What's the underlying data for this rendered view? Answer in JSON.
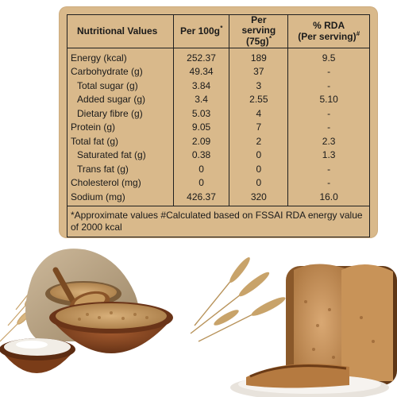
{
  "nutrition": {
    "headers": {
      "nutrient": "Nutritional Values",
      "per100g": "Per 100g",
      "per100g_mark": "*",
      "per_serving_line1": "Per serving",
      "per_serving_line2": "(75g)",
      "per_serving_mark": "*",
      "rda_line1": "% RDA",
      "rda_line2": "(Per serving)",
      "rda_mark": "#"
    },
    "rows": [
      {
        "name": "Energy (kcal)",
        "per100g": "252.37",
        "serving": "189",
        "rda": "9.5"
      },
      {
        "name": "Carbohydrate (g)",
        "per100g": "49.34",
        "serving": "37",
        "rda": "-"
      },
      {
        "name": "Total sugar (g)",
        "per100g": "3.84",
        "serving": "3",
        "rda": "-"
      },
      {
        "name": "Added sugar (g)",
        "per100g": "3.4",
        "serving": "2.55",
        "rda": "5.10"
      },
      {
        "name": "Dietary fibre (g)",
        "per100g": "5.03",
        "serving": "4",
        "rda": "-"
      },
      {
        "name": "Protein (g)",
        "per100g": "9.05",
        "serving": "7",
        "rda": "-"
      },
      {
        "name": "Total fat (g)",
        "per100g": "2.09",
        "serving": "2",
        "rda": "2.3"
      },
      {
        "name": "Saturated fat (g)",
        "per100g": "0.38",
        "serving": "0",
        "rda": "1.3"
      },
      {
        "name": "Trans fat (g)",
        "per100g": "0",
        "serving": "0",
        "rda": "-"
      },
      {
        "name": "Cholesterol (mg)",
        "per100g": "0",
        "serving": "0",
        "rda": "-"
      },
      {
        "name": "Sodium (mg)",
        "per100g": "426.37",
        "serving": "320",
        "rda": "16.0"
      }
    ],
    "footnote": "*Approximate values #Calculated based on FSSAI RDA energy value of 2000 kcal"
  },
  "colors": {
    "label_background": "#d9b98b",
    "border": "#1f1f1f"
  }
}
